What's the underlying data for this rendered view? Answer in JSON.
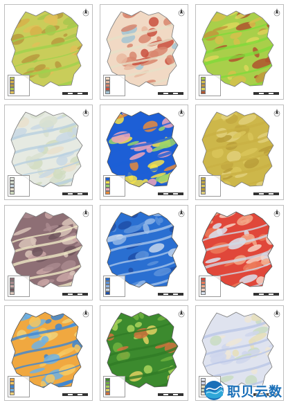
{
  "watermark": {
    "text": "职贝云数",
    "logo": "wave-circle-logo"
  },
  "panels": [
    {
      "id": "p1",
      "palette": [
        "#c9cd5a",
        "#d7b04a",
        "#b99a3e",
        "#a8c74e",
        "#e0c058"
      ],
      "band": "#9fd24c",
      "outline": "#7a7a7a"
    },
    {
      "id": "p2",
      "palette": [
        "#f1d9c4",
        "#e9b9a0",
        "#d8866e",
        "#c94f3e",
        "#a3c4d4"
      ],
      "band": "#e6e0c8",
      "outline": "#7a7a7a"
    },
    {
      "id": "p3",
      "palette": [
        "#a9cf4a",
        "#d6c04b",
        "#c2973b",
        "#dcd75a",
        "#b0542e"
      ],
      "band": "#7fd93a",
      "outline": "#7a7a7a"
    },
    {
      "id": "p4",
      "palette": [
        "#e6eae2",
        "#d8e0d0",
        "#c8d8e4",
        "#e9e0cc",
        "#d0dcc0"
      ],
      "band": "#b8cfe0",
      "outline": "#7a7a7a"
    },
    {
      "id": "p5",
      "palette": [
        "#1d5fd6",
        "#f6e24a",
        "#9ad36a",
        "#f0a6b8",
        "#e88b3c"
      ],
      "band": "#1d5fd6",
      "outline": "#555555"
    },
    {
      "id": "p6",
      "palette": [
        "#cdb74a",
        "#c2a83f",
        "#d9c659",
        "#b99d38",
        "#e1d07a"
      ],
      "band": "#c9b043",
      "outline": "#7a7a7a"
    },
    {
      "id": "p7",
      "palette": [
        "#8e6f75",
        "#a98a8e",
        "#caa7a6",
        "#6e555c",
        "#d9c4b8"
      ],
      "band": "#efe9c6",
      "outline": "#7a7a7a"
    },
    {
      "id": "p8",
      "palette": [
        "#2a6fd1",
        "#5b92dc",
        "#93b7e6",
        "#c7d7ec",
        "#1e4fa8"
      ],
      "band": "#a9c6ea",
      "outline": "#555555"
    },
    {
      "id": "p9",
      "palette": [
        "#e0473a",
        "#ec7a5a",
        "#f3a98a",
        "#f7d2c2",
        "#d9e2ee"
      ],
      "band": "#cfd9e6",
      "outline": "#555555"
    },
    {
      "id": "p10",
      "palette": [
        "#f0a840",
        "#f6c75f",
        "#3c86d4",
        "#6fb1e4",
        "#f0d27a"
      ],
      "band": "#3c86d4",
      "outline": "#555555"
    },
    {
      "id": "p11",
      "palette": [
        "#3c8a2e",
        "#6fb23e",
        "#a9d35a",
        "#e2d060",
        "#d0713c"
      ],
      "band": "#2f7a26",
      "outline": "#555555"
    },
    {
      "id": "p12",
      "palette": [
        "#dfe3ef",
        "#cfd6ec",
        "#e7dfb8",
        "#c9dcc2",
        "#efe6d6"
      ],
      "band": "#b9c6e6",
      "outline": "#7a7a7a"
    }
  ]
}
